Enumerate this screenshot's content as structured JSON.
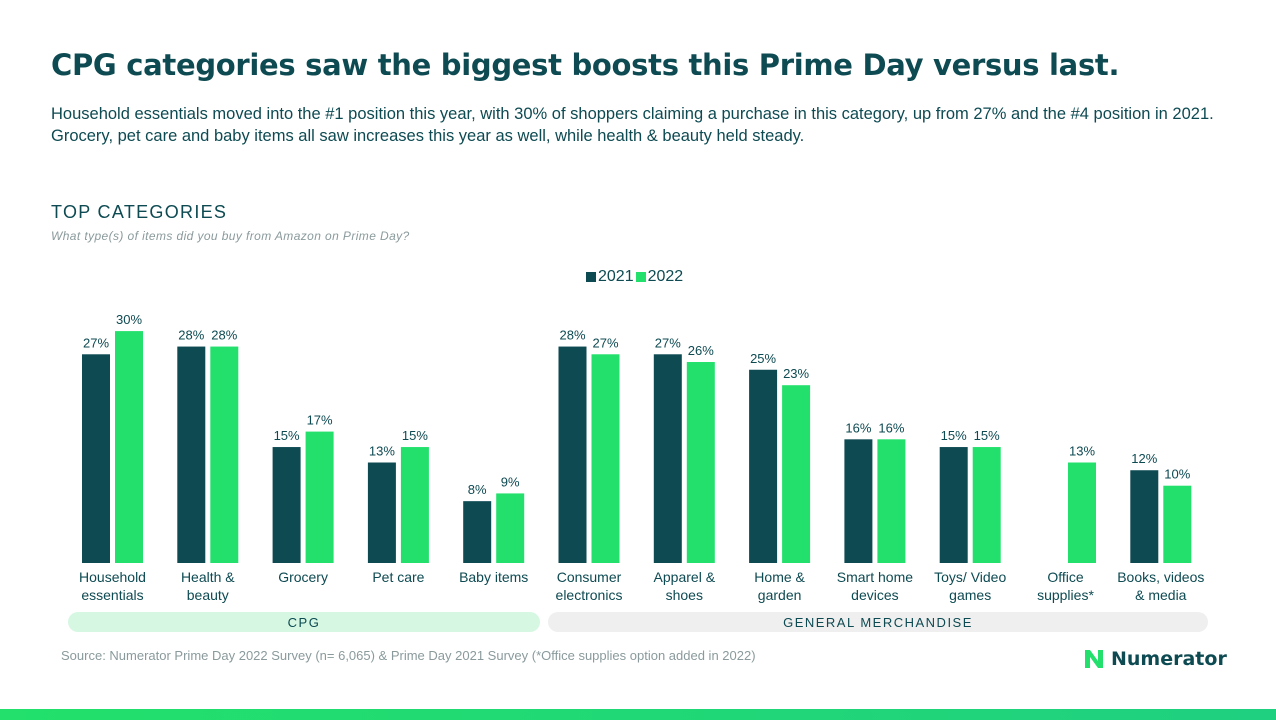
{
  "header": {
    "title": "CPG categories saw the biggest boosts this Prime Day versus last.",
    "subtitle": "Household essentials moved into the #1 position this year, with 30% of shoppers claiming a purchase in this category, up from 27% and the #4 position in 2021. Grocery, pet care and baby items all saw increases this year as well, while health & beauty held steady."
  },
  "section": {
    "title": "TOP CATEGORIES",
    "question": "What type(s) of items did you buy from Amazon on Prime Day?"
  },
  "chart_data": {
    "type": "bar",
    "categories": [
      [
        "Household",
        "essentials"
      ],
      [
        "Health &",
        "beauty"
      ],
      [
        "Grocery"
      ],
      [
        "Pet care"
      ],
      [
        "Baby items"
      ],
      [
        "Consumer",
        "electronics"
      ],
      [
        "Apparel &",
        "shoes"
      ],
      [
        "Home &",
        "garden"
      ],
      [
        "Smart home",
        "devices"
      ],
      [
        "Toys/ Video",
        "games"
      ],
      [
        "Office",
        "supplies*"
      ],
      [
        "Books, videos",
        "& media"
      ]
    ],
    "series": [
      {
        "name": "2021",
        "color": "#0d4a52",
        "values": [
          27,
          28,
          15,
          13,
          8,
          28,
          27,
          25,
          16,
          15,
          null,
          12
        ]
      },
      {
        "name": "2022",
        "color": "#22e06b",
        "values": [
          30,
          28,
          17,
          15,
          9,
          27,
          26,
          23,
          16,
          15,
          13,
          10
        ]
      }
    ],
    "value_suffix": "%",
    "ylim": [
      0,
      30
    ],
    "grid": false,
    "legend": "top-center",
    "groups": [
      {
        "label": "CPG",
        "categories": 5
      },
      {
        "label": "GENERAL MERCHANDISE",
        "categories": 7
      }
    ]
  },
  "footer": {
    "source": "Source: Numerator Prime Day 2022 Survey (n= 6,065) & Prime Day 2021 Survey (*Office supplies option added in 2022)",
    "logo_text": "Numerator",
    "logo_icon": "numerator-n-logo-icon"
  }
}
